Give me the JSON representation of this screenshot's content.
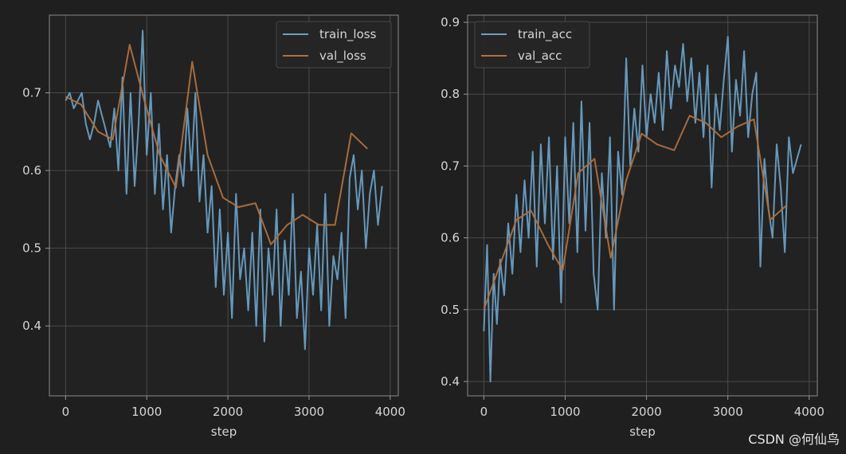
{
  "watermark": "CSDN @何仙鸟",
  "chart_data": [
    {
      "type": "line",
      "xlabel": "step",
      "ylabel": "",
      "xlim": [
        -200,
        4100
      ],
      "ylim": [
        0.31,
        0.8
      ],
      "xticks": [
        0,
        1000,
        2000,
        3000,
        4000
      ],
      "yticks": [
        0.4,
        0.5,
        0.6,
        0.7
      ],
      "ytick_labels": [
        "0.4",
        "0.5",
        "0.6",
        "0.7"
      ],
      "grid": true,
      "legend": "top-right",
      "series": [
        {
          "name": "train_loss",
          "color": "#6a9fc4",
          "x": [
            0,
            50,
            100,
            150,
            200,
            250,
            300,
            350,
            400,
            450,
            500,
            550,
            600,
            650,
            700,
            750,
            800,
            850,
            900,
            950,
            1000,
            1050,
            1100,
            1150,
            1200,
            1250,
            1300,
            1350,
            1400,
            1450,
            1500,
            1550,
            1600,
            1650,
            1700,
            1750,
            1800,
            1850,
            1900,
            1950,
            2000,
            2050,
            2100,
            2150,
            2200,
            2250,
            2300,
            2350,
            2400,
            2450,
            2500,
            2550,
            2600,
            2650,
            2700,
            2750,
            2800,
            2850,
            2900,
            2950,
            3000,
            3050,
            3100,
            3150,
            3200,
            3250,
            3300,
            3350,
            3400,
            3450,
            3500,
            3550,
            3600,
            3650,
            3700,
            3750,
            3800,
            3850,
            3900
          ],
          "values": [
            0.69,
            0.7,
            0.68,
            0.69,
            0.7,
            0.66,
            0.64,
            0.66,
            0.69,
            0.67,
            0.65,
            0.63,
            0.68,
            0.6,
            0.72,
            0.57,
            0.7,
            0.58,
            0.66,
            0.78,
            0.62,
            0.7,
            0.57,
            0.66,
            0.55,
            0.62,
            0.52,
            0.58,
            0.62,
            0.58,
            0.68,
            0.6,
            0.7,
            0.56,
            0.62,
            0.52,
            0.58,
            0.45,
            0.55,
            0.44,
            0.52,
            0.41,
            0.57,
            0.46,
            0.5,
            0.42,
            0.52,
            0.4,
            0.55,
            0.38,
            0.5,
            0.44,
            0.55,
            0.4,
            0.51,
            0.44,
            0.57,
            0.41,
            0.47,
            0.37,
            0.5,
            0.44,
            0.53,
            0.42,
            0.57,
            0.4,
            0.49,
            0.46,
            0.52,
            0.41,
            0.59,
            0.62,
            0.55,
            0.6,
            0.5,
            0.57,
            0.6,
            0.53,
            0.58
          ]
        },
        {
          "name": "val_loss",
          "color": "#b0703e",
          "x": [
            0,
            190,
            400,
            580,
            790,
            970,
            1160,
            1360,
            1560,
            1750,
            1940,
            2130,
            2340,
            2530,
            2730,
            2920,
            3120,
            3320,
            3520,
            3720
          ],
          "values": [
            0.695,
            0.685,
            0.65,
            0.64,
            0.762,
            0.69,
            0.62,
            0.578,
            0.74,
            0.62,
            0.565,
            0.553,
            0.558,
            0.505,
            0.53,
            0.543,
            0.53,
            0.53,
            0.648,
            0.628
          ]
        }
      ]
    },
    {
      "type": "line",
      "xlabel": "step",
      "ylabel": "",
      "xlim": [
        -200,
        4100
      ],
      "ylim": [
        0.38,
        0.91
      ],
      "xticks": [
        0,
        1000,
        2000,
        3000,
        4000
      ],
      "yticks": [
        0.4,
        0.5,
        0.6,
        0.7,
        0.8,
        0.9
      ],
      "ytick_labels": [
        "0.4",
        "0.5",
        "0.6",
        "0.7",
        "0.8",
        "0.9"
      ],
      "grid": true,
      "legend": "top-left",
      "series": [
        {
          "name": "train_acc",
          "color": "#6a9fc4",
          "x": [
            0,
            40,
            80,
            120,
            160,
            200,
            250,
            300,
            350,
            400,
            450,
            500,
            550,
            600,
            650,
            700,
            750,
            800,
            850,
            900,
            950,
            1000,
            1050,
            1100,
            1150,
            1200,
            1250,
            1300,
            1350,
            1400,
            1450,
            1500,
            1550,
            1600,
            1650,
            1700,
            1750,
            1800,
            1850,
            1900,
            1950,
            2000,
            2050,
            2100,
            2150,
            2200,
            2250,
            2300,
            2350,
            2400,
            2450,
            2500,
            2550,
            2600,
            2650,
            2700,
            2750,
            2800,
            2850,
            2900,
            2950,
            3000,
            3050,
            3100,
            3150,
            3200,
            3250,
            3300,
            3350,
            3400,
            3450,
            3500,
            3550,
            3600,
            3650,
            3700,
            3750,
            3800,
            3850,
            3900
          ],
          "values": [
            0.47,
            0.59,
            0.4,
            0.55,
            0.48,
            0.57,
            0.52,
            0.62,
            0.55,
            0.66,
            0.58,
            0.68,
            0.6,
            0.72,
            0.56,
            0.73,
            0.62,
            0.74,
            0.57,
            0.7,
            0.51,
            0.74,
            0.62,
            0.76,
            0.58,
            0.79,
            0.61,
            0.76,
            0.55,
            0.5,
            0.69,
            0.6,
            0.74,
            0.5,
            0.72,
            0.66,
            0.85,
            0.7,
            0.78,
            0.72,
            0.84,
            0.74,
            0.8,
            0.76,
            0.83,
            0.75,
            0.86,
            0.78,
            0.84,
            0.81,
            0.87,
            0.79,
            0.85,
            0.76,
            0.83,
            0.74,
            0.84,
            0.67,
            0.8,
            0.75,
            0.82,
            0.88,
            0.72,
            0.82,
            0.77,
            0.86,
            0.74,
            0.8,
            0.83,
            0.56,
            0.71,
            0.64,
            0.6,
            0.73,
            0.67,
            0.58,
            0.74,
            0.69,
            0.71,
            0.73
          ]
        },
        {
          "name": "val_acc",
          "color": "#b0703e",
          "x": [
            0,
            190,
            400,
            580,
            790,
            970,
            1160,
            1360,
            1560,
            1750,
            1940,
            2130,
            2340,
            2530,
            2730,
            2920,
            3120,
            3320,
            3520,
            3720
          ],
          "values": [
            0.5,
            0.56,
            0.625,
            0.638,
            0.59,
            0.555,
            0.69,
            0.71,
            0.572,
            0.68,
            0.745,
            0.73,
            0.722,
            0.77,
            0.76,
            0.74,
            0.755,
            0.765,
            0.625,
            0.645
          ]
        }
      ]
    }
  ]
}
